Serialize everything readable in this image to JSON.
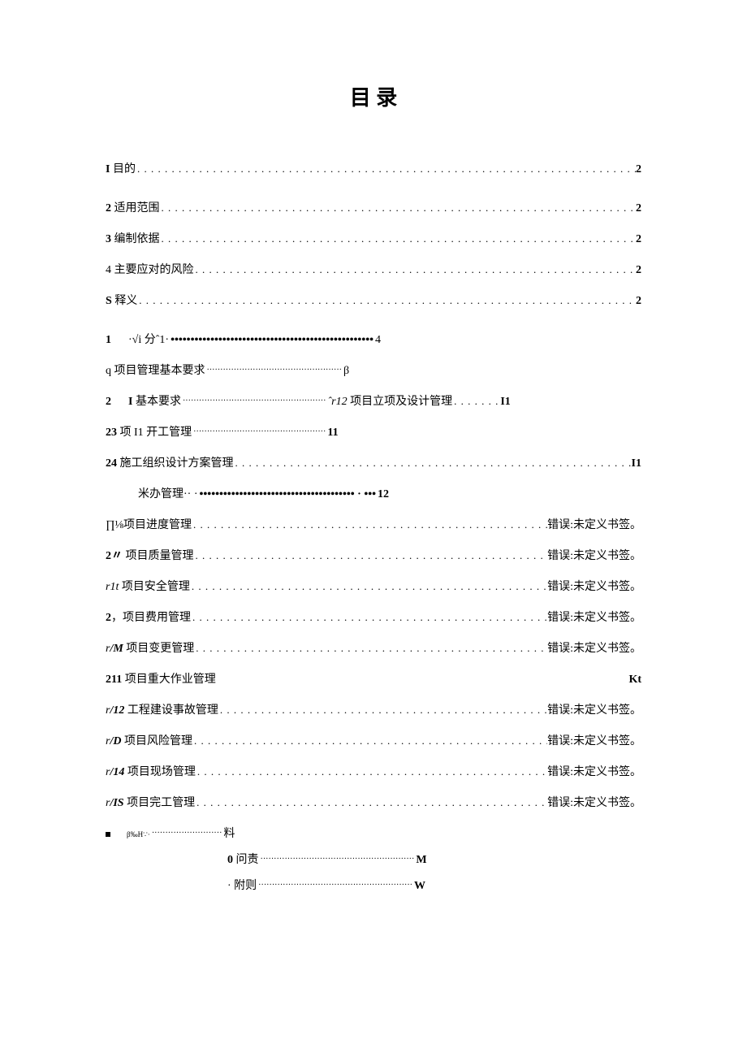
{
  "title": "目 录",
  "entries": [
    {
      "label_html": "<span class='bold'>I</span> 目的",
      "dots_style": "dots",
      "page": "2",
      "page_class": "page",
      "gap": "gap-large"
    },
    {
      "label_html": "<span class='bold'>2</span> 适用范围 ",
      "dots_style": "dots",
      "page": "2",
      "page_class": "page",
      "gap": "gap-large"
    },
    {
      "label_html": "<span class='bold'>3</span> 编制依据 ",
      "dots_style": "dots",
      "page": "2",
      "page_class": "page",
      "gap": "gap-med"
    },
    {
      "label_html": "4 主要应对的风险",
      "dots_style": "dots",
      "page": "2",
      "page_class": "page",
      "gap": "gap-med"
    },
    {
      "label_html": "<span class='bold'>S</span> 释义 ",
      "dots_style": "dots",
      "page": "2",
      "page_class": "page",
      "gap": "gap-med"
    },
    {
      "label_html": "<span class='bold'>1</span>&nbsp;&nbsp;&nbsp;&nbsp;&nbsp;&nbsp;·√i 分ˆ1·",
      "dots_style": "dots-heavy",
      "dots_fixed": "•••••••••••••••••••••••••••••••••••••••••••••••••••",
      "page": "4",
      "page_class": "page-normal",
      "gap": "gap-large",
      "no_flex": true
    },
    {
      "label_html": "q 项目管理基本要求",
      "dots_style": "dots-thin",
      "dots_fixed": "··················································",
      "page": " β",
      "page_class": "page-normal",
      "gap": "gap-med",
      "no_flex": true
    },
    {
      "label_html": "<span class='bold'>2</span>&nbsp;&nbsp;&nbsp;&nbsp;&nbsp;&nbsp;<span class='bold'>I</span> 基本要求",
      "dots_style": "dots-thin",
      "dots_fixed": "·····················································",
      "mid_text": "<span class='italic'>ˆr12</span> 项目立项及设计管理 ",
      "page": " I1",
      "page_class": "page",
      "gap": "gap-med",
      "has_mid": true
    },
    {
      "label_html": "<span class='bold'>23</span> 项 I1 开工管理",
      "dots_style": "dots-thin",
      "dots_fixed": "·················································",
      "page": "11",
      "page_class": "page",
      "gap": "gap-med",
      "no_flex": true
    },
    {
      "label_html": "<span class='bold'>24</span> 施工组织设计方案管理 ",
      "dots_style": "dots",
      "page": "I1",
      "page_class": "page",
      "gap": "gap-med"
    },
    {
      "label_html": "米办管理·· ·",
      "dots_style": "dots-heavy",
      "dots_fixed": "••••••••••••••••••••••••••••••••••••••• · •••",
      "page": "12",
      "page_class": "page",
      "gap": "gap-med",
      "indent": "indent1",
      "no_flex": true
    },
    {
      "label_html": "∏⅛项目进度管理",
      "dots_style": "dots",
      "page": " 错误:未定义书签。",
      "page_class": "page-normal",
      "gap": "gap-med"
    },
    {
      "label_html": "<span class='bold'>2〃</span> 项目质量管理 ",
      "dots_style": "dots",
      "page": " 错误:未定义书签。",
      "page_class": "page-normal",
      "gap": "gap-med"
    },
    {
      "label_html": "<span class='italic'>r1t </span>项目安全管理 ",
      "dots_style": "dots",
      "page": " 错误:未定义书签。",
      "page_class": "page-normal",
      "gap": "gap-med"
    },
    {
      "label_html": "<span class='bold'>2</span>，项目费用管理 ",
      "dots_style": "dots",
      "page": " 错误:未定义书签。",
      "page_class": "page-normal",
      "gap": "gap-med"
    },
    {
      "label_html": "<span class='italic'>r</span><span class='italic bold'>/M </span>项目变更管理",
      "dots_style": "dots",
      "page": " 错误:未定义书签。",
      "page_class": "page-normal",
      "gap": "gap-med"
    },
    {
      "label_html": "<span class='bold'>211</span> 项目重大作业管理",
      "dots_style": "",
      "page": "Kt",
      "page_class": "page",
      "gap": "gap-med",
      "no_dots": true
    },
    {
      "label_html": "<span class='italic'>r</span><span class='italic bold'>/12</span> 工程建设事故管理",
      "dots_style": "dots",
      "page": " 错误:未定义书签。",
      "page_class": "page-normal",
      "gap": "gap-med"
    },
    {
      "label_html": "<span class='italic'>r</span><span class='italic bold'>/D</span> 项目风险管理 ",
      "dots_style": "dots",
      "page": " 错误:未定义书签。",
      "page_class": "page-normal",
      "gap": "gap-med"
    },
    {
      "label_html": "<span class='italic'>r</span><span class='italic bold'>/14 </span>项目现场管理 ",
      "dots_style": "dots",
      "page": " 错误:未定义书签。",
      "page_class": "page-normal",
      "gap": "gap-med"
    },
    {
      "label_html": "<span class='italic'>r</span><span class='italic bold'>/IS </span>项目完工管理",
      "dots_style": "dots",
      "page": " 错误:未定义书签。",
      "page_class": "page-normal",
      "gap": "gap-med"
    },
    {
      "label_html": "<span class='bullet-sq'></span><span class='tiny-text'>β‰H∵·</span>",
      "dots_style": "dots-thin",
      "dots_fixed": "··························",
      "page": "料",
      "page_class": "page-normal",
      "gap": "gap-med",
      "no_flex": true
    },
    {
      "label_html": "<span class='bold'>0</span> 问责",
      "dots_style": "dots-thin",
      "dots_fixed": "·························································",
      "page": "M",
      "page_class": "page",
      "gap": "gap-small",
      "indent": "indent2",
      "no_flex": true
    },
    {
      "label_html": "· 附则",
      "dots_style": "dots-thin",
      "dots_fixed": "·························································",
      "page": "W",
      "page_class": "page",
      "gap": "gap-small",
      "indent": "indent2",
      "no_flex": true
    }
  ],
  "dots_fill": ". . . . . . . . . . . . . . . . . . . . . . . . . . . . . . . . . . . . . . . . . . . . . . . . . . . . . . . . . . . . . . . . . . . . . . . . . . . . . . . . . . . . . . . . . . . . . . . . . . . . . . . . . . . . . . . . . . . . . . . . ",
  "dots_fill_mid": " . . . . . . ."
}
